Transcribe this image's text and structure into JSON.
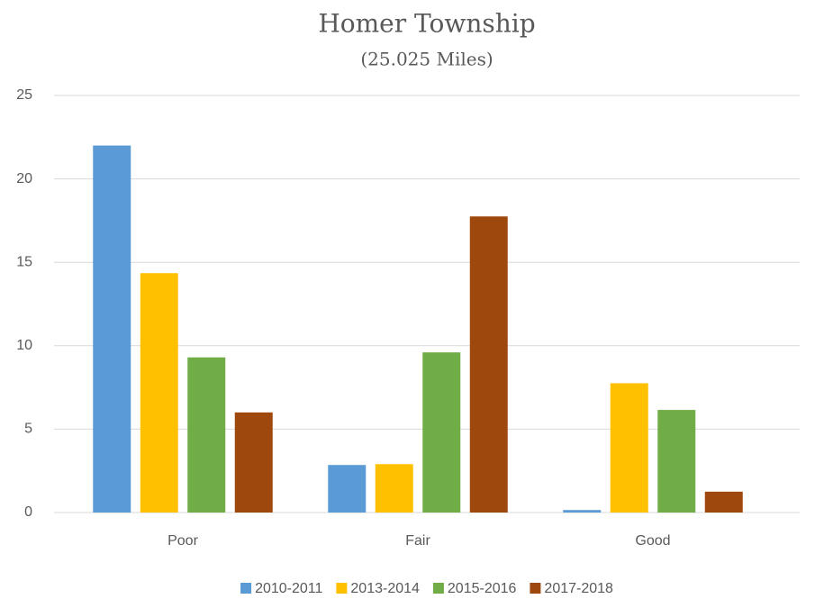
{
  "chart_data": {
    "type": "bar",
    "title": "Homer Township",
    "subtitle": "(25.025 Miles)",
    "categories": [
      "Poor",
      "Fair",
      "Good"
    ],
    "series": [
      {
        "name": "2010-2011",
        "color": "#5b9bd5",
        "values": [
          22,
          2.85,
          0.15
        ]
      },
      {
        "name": "2013-2014",
        "color": "#ffc000",
        "values": [
          14.35,
          2.9,
          7.75
        ]
      },
      {
        "name": "2015-2016",
        "color": "#70ad47",
        "values": [
          9.3,
          9.6,
          6.15
        ]
      },
      {
        "name": "2017-2018",
        "color": "#9e480e",
        "values": [
          6,
          17.75,
          1.25
        ]
      }
    ],
    "ylim": [
      0,
      25
    ],
    "yticks": [
      0,
      5,
      10,
      15,
      20,
      25
    ],
    "grid": true,
    "legend": "bottom"
  }
}
